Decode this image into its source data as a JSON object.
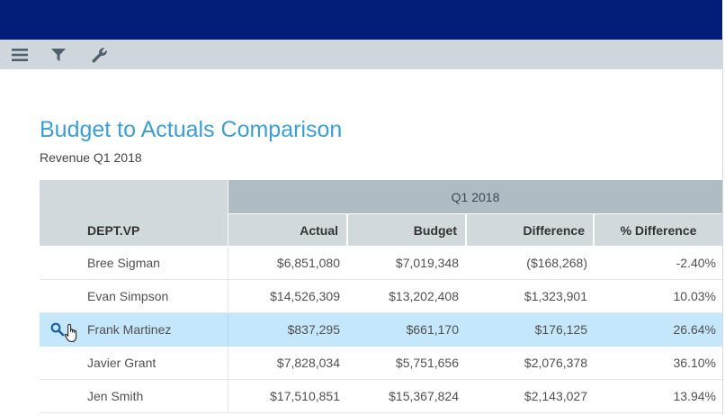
{
  "toolbar": {
    "icons": [
      "hamburger-menu-icon",
      "filter-icon",
      "wrench-icon"
    ]
  },
  "report": {
    "title": "Budget to Actuals Comparison",
    "subtitle": "Revenue Q1 2018"
  },
  "table": {
    "group_header": "Q1 2018",
    "columns": {
      "dept": "DEPT.VP",
      "actual": "Actual",
      "budget": "Budget",
      "difference": "Difference",
      "pct": "% Difference"
    },
    "rows": [
      {
        "name": "Bree Sigman",
        "actual": "$6,851,080",
        "budget": "$7,019,348",
        "difference": "($168,268)",
        "pct": "-2.40%"
      },
      {
        "name": "Evan Simpson",
        "actual": "$14,526,309",
        "budget": "$13,202,408",
        "difference": "$1,323,901",
        "pct": "10.03%"
      },
      {
        "name": "Frank Martinez",
        "actual": "$837,295",
        "budget": "$661,170",
        "difference": "$176,125",
        "pct": "26.64%",
        "selected": true
      },
      {
        "name": "Javier Grant",
        "actual": "$7,828,034",
        "budget": "$5,751,656",
        "difference": "$2,076,378",
        "pct": "36.10%"
      },
      {
        "name": "Jen Smith",
        "actual": "$17,510,851",
        "budget": "$15,367,824",
        "difference": "$2,143,027",
        "pct": "13.94%"
      }
    ]
  },
  "colors": {
    "header_bar": "#031c78",
    "title": "#3e9ed0",
    "selected_row": "#c5e7fb"
  }
}
